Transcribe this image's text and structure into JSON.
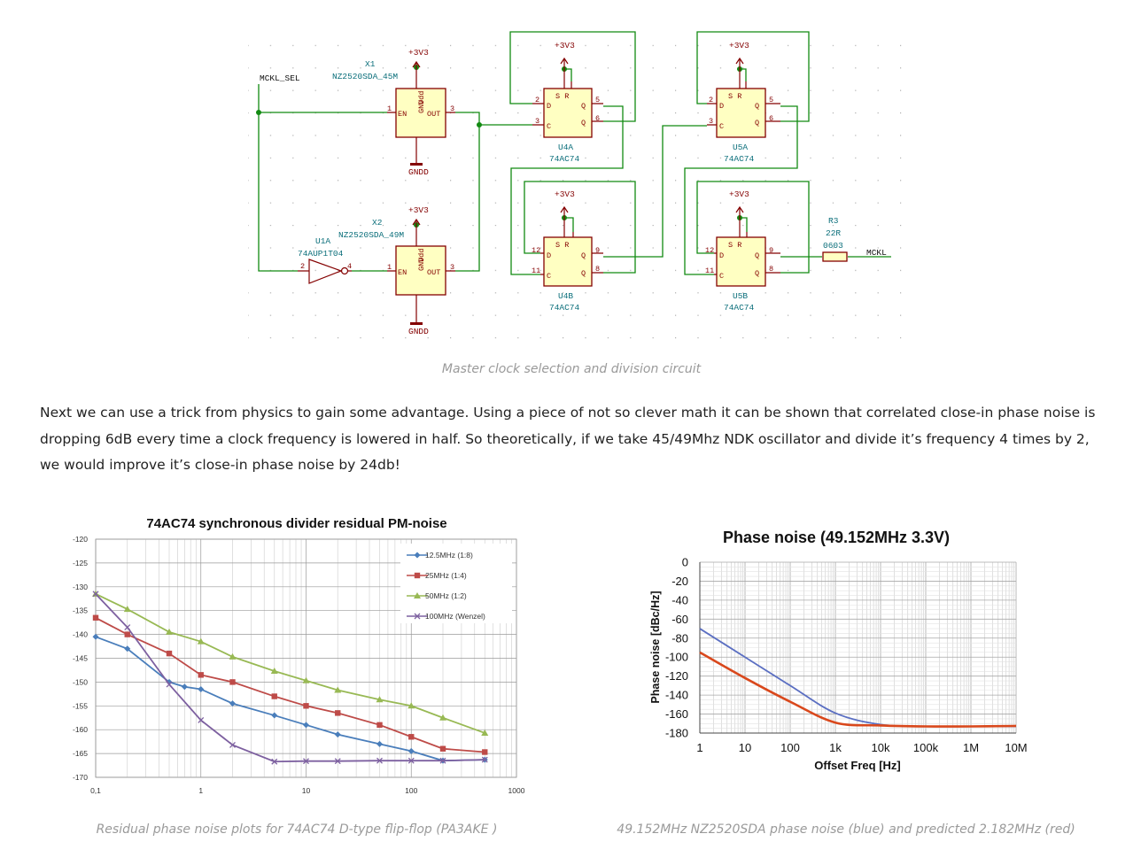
{
  "schematic": {
    "caption": "Master clock selection and division circuit",
    "labels": {
      "mckl_sel": "MCKL_SEL",
      "mckl": "MCKL",
      "x1_ref": "X1",
      "x1_val": "NZ2520SDA_45M",
      "x2_ref": "X2",
      "x2_val": "NZ2520SDA_49M",
      "u1_ref": "U1A",
      "u1_val": "74AUP1T04",
      "u4a_ref": "U4A",
      "u4b_ref": "U4B",
      "u5a_ref": "U5A",
      "u5b_ref": "U5B",
      "ic_val": "74AC74",
      "r3_ref": "R3",
      "r3_val": "22R",
      "r3_pkg": "0603",
      "vcc": "+3V3",
      "gnd": "GNDD"
    }
  },
  "paragraph": "Next we can use a trick from physics to gain some advantage. Using a piece of not so clever math it can be shown that correlated close-in phase noise is dropping 6dB every time a clock frequency is lowered in half. So theoretically, if we take 45/49Mhz NDK oscillator and divide it’s frequency 4 times by 2, we would improve it’s close-in phase noise by 24db!",
  "chart_left": {
    "caption": "Residual phase noise plots for 74AC74 D-type flip-flop (PA3AKE )",
    "chart_data": {
      "type": "line",
      "title": "74AC74 synchronous divider residual PM-noise",
      "x_scale": "log",
      "xlim": [
        0.1,
        1000
      ],
      "ylim": [
        -170,
        -120
      ],
      "x_ticks": [
        "0,1",
        "1",
        "10",
        "100",
        "1000"
      ],
      "y_ticks": [
        "-120",
        "-125",
        "-130",
        "-135",
        "-140",
        "-145",
        "-150",
        "-155",
        "-160",
        "-165",
        "-170"
      ],
      "grid": true,
      "legend_position": "top-right",
      "series": [
        {
          "name": "12.5MHz (1:8)",
          "color": "#4a7ebb",
          "marker": "diamond",
          "x": [
            0.1,
            0.2,
            0.5,
            0.7,
            1,
            2,
            5,
            10,
            20,
            50,
            100,
            200,
            500
          ],
          "y": [
            -140.5,
            -143,
            -150,
            -151,
            -151.5,
            -154.5,
            -157,
            -159,
            -161,
            -163,
            -164.5,
            -166.5,
            -166.3
          ]
        },
        {
          "name": "25MHz (1:4)",
          "color": "#be4b48",
          "marker": "square",
          "x": [
            0.1,
            0.2,
            0.5,
            1,
            2,
            5,
            10,
            20,
            50,
            100,
            200,
            500
          ],
          "y": [
            -136.5,
            -140,
            -144,
            -148.5,
            -150,
            -153,
            -155,
            -156.5,
            -159,
            -161.5,
            -164,
            -164.7
          ]
        },
        {
          "name": "50MHz (1:2)",
          "color": "#98b954",
          "marker": "triangle",
          "x": [
            0.1,
            0.2,
            0.5,
            1,
            2,
            5,
            10,
            20,
            50,
            100,
            200,
            500
          ],
          "y": [
            -131.5,
            -134.7,
            -139.5,
            -141.5,
            -144.7,
            -147.7,
            -149.7,
            -151.7,
            -153.7,
            -155,
            -157.5,
            -160.7
          ]
        },
        {
          "name": "100MHz (Wenzel)",
          "color": "#7d60a0",
          "marker": "cross",
          "x": [
            0.1,
            0.2,
            0.5,
            1,
            2,
            5,
            10,
            20,
            50,
            100,
            200,
            500
          ],
          "y": [
            -131.5,
            -138.5,
            -150.5,
            -158,
            -163.2,
            -166.7,
            -166.6,
            -166.6,
            -166.5,
            -166.5,
            -166.5,
            -166.3
          ]
        }
      ]
    }
  },
  "chart_right": {
    "caption": "49.152MHz NZ2520SDA phase noise (blue) and predicted 2.182MHz (red)",
    "chart_data": {
      "type": "line",
      "title": "Phase noise (49.152MHz 3.3V)",
      "xlabel": "Offset Freq [Hz]",
      "ylabel": "Phase noise [dBc/Hz]",
      "x_scale": "log",
      "xlim": [
        1,
        10000000
      ],
      "ylim": [
        -180,
        0
      ],
      "x_ticks": [
        "1",
        "10",
        "100",
        "1k",
        "10k",
        "100k",
        "1M",
        "10M"
      ],
      "y_ticks": [
        "0",
        "-20",
        "-40",
        "-60",
        "-80",
        "-100",
        "-120",
        "-140",
        "-160",
        "-180"
      ],
      "grid": true,
      "series": [
        {
          "color": "#5b6fc2",
          "x": [
            1,
            10,
            100,
            1000,
            10000,
            100000,
            1000000,
            10000000
          ],
          "y": [
            -70,
            -100,
            -130,
            -159,
            -171,
            -173,
            -173,
            -173
          ]
        },
        {
          "color": "#d9481c",
          "x": [
            1,
            10,
            100,
            1000,
            10000,
            100000,
            1000000,
            10000000
          ],
          "y": [
            -95,
            -122,
            -147,
            -169,
            -172,
            -173,
            -173,
            -172.5
          ]
        }
      ]
    }
  }
}
